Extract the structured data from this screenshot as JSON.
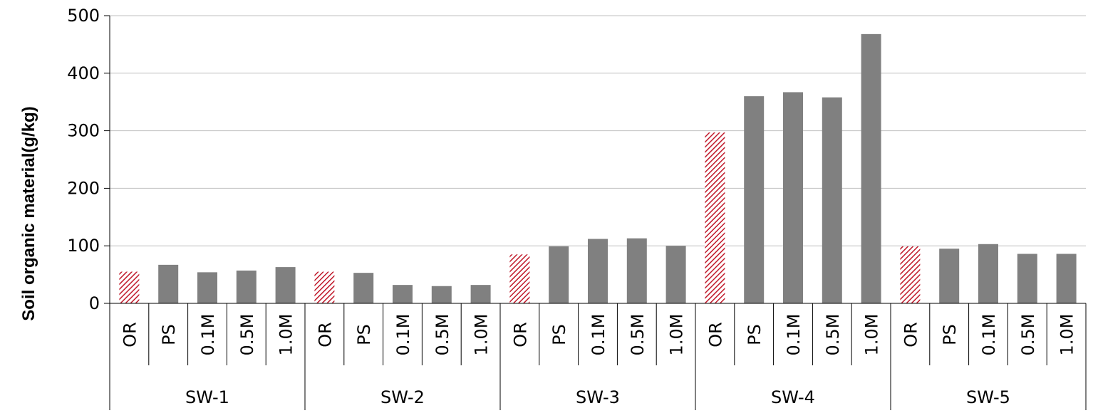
{
  "chart_data": {
    "type": "bar",
    "ylabel": "Soil organic material(g/kg)",
    "ylim": [
      0,
      500
    ],
    "yticks": [
      0,
      100,
      200,
      300,
      400,
      500
    ],
    "grid": "horizontal",
    "groups": [
      {
        "label": "SW-1",
        "categories": [
          "OR",
          "PS",
          "0.1M",
          "0.5M",
          "1.0M"
        ],
        "values": [
          55,
          67,
          54,
          57,
          63
        ]
      },
      {
        "label": "SW-2",
        "categories": [
          "OR",
          "PS",
          "0.1M",
          "0.5M",
          "1.0M"
        ],
        "values": [
          55,
          53,
          32,
          30,
          32
        ]
      },
      {
        "label": "SW-3",
        "categories": [
          "OR",
          "PS",
          "0.1M",
          "0.5M",
          "1.0M"
        ],
        "values": [
          85,
          99,
          112,
          113,
          100
        ]
      },
      {
        "label": "SW-4",
        "categories": [
          "OR",
          "PS",
          "0.1M",
          "0.5M",
          "1.0M"
        ],
        "values": [
          297,
          360,
          367,
          358,
          468
        ]
      },
      {
        "label": "SW-5",
        "categories": [
          "OR",
          "PS",
          "0.1M",
          "0.5M",
          "1.0M"
        ],
        "values": [
          99,
          95,
          103,
          86,
          86
        ]
      }
    ],
    "colors": {
      "bar": "#808080",
      "highlight_hatch": "#c0192a",
      "grid": "#bfbfbf",
      "axis": "#000000"
    }
  }
}
